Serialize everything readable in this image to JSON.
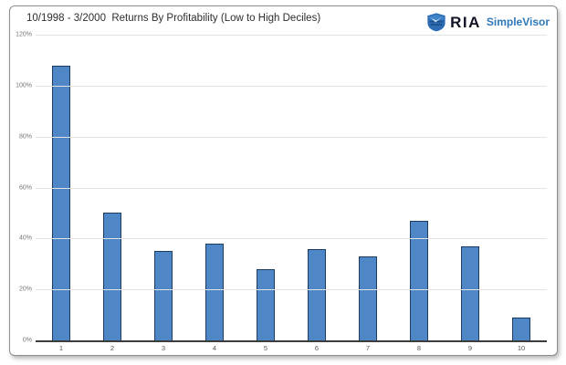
{
  "header": {
    "title": "10/1998 - 3/2000  Returns By Profitability (Low to High Deciles)",
    "logo": {
      "brand": "RIA",
      "product": "SimpleVisor",
      "brand_color": "#101426",
      "product_color": "#2e78b8",
      "shield_icon_color": "#2d6cb5"
    }
  },
  "chart_data": {
    "type": "bar",
    "title": "10/1998 - 3/2000  Returns By Profitability (Low to High Deciles)",
    "categories": [
      "1",
      "2",
      "3",
      "4",
      "5",
      "6",
      "7",
      "8",
      "9",
      "10"
    ],
    "values": [
      108,
      50,
      35,
      38,
      28,
      36,
      33,
      47,
      37,
      9
    ],
    "xlabel": "",
    "ylabel": "",
    "y_ticks": [
      "120%",
      "100%",
      "80%",
      "60%",
      "40%",
      "20%",
      "0%"
    ],
    "ylim": [
      0,
      120
    ],
    "grid": true,
    "legend": false,
    "bar_fill": "#4e86c6",
    "bar_border": "#1b3b63",
    "gridline_color": "#e3e3e3",
    "axis_color": "#3c3c3c"
  }
}
